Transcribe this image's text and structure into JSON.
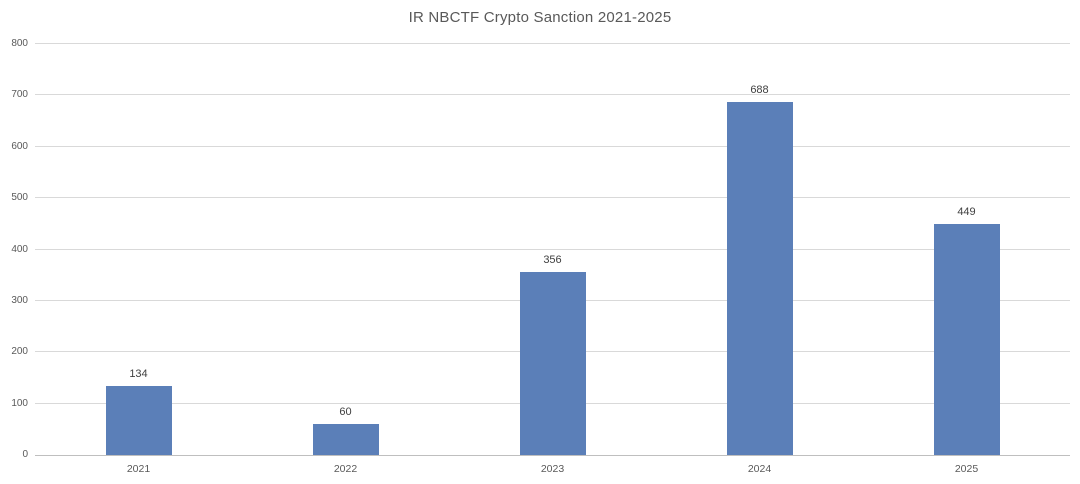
{
  "chart_data": {
    "type": "bar",
    "title": "IR NBCTF Crypto Sanction 2021-2025",
    "categories": [
      "2021",
      "2022",
      "2023",
      "2024",
      "2025"
    ],
    "values": [
      134,
      60,
      356,
      688,
      449
    ],
    "data_labels": [
      "134",
      "60",
      "356",
      "688",
      "449"
    ],
    "xlabel": "",
    "ylabel": "",
    "ylim": [
      0,
      800
    ],
    "yticks": [
      0,
      100,
      200,
      300,
      400,
      500,
      600,
      700,
      800
    ],
    "grid": "horizontal",
    "legend": "none",
    "colors": {
      "bar": "#5b7fb8",
      "title_text": "#595959",
      "axis_text": "#595959",
      "value_label_text": "#404040",
      "gridline": "#d9d9d9",
      "axis_line": "#bfbfbf",
      "background": "#ffffff"
    }
  }
}
